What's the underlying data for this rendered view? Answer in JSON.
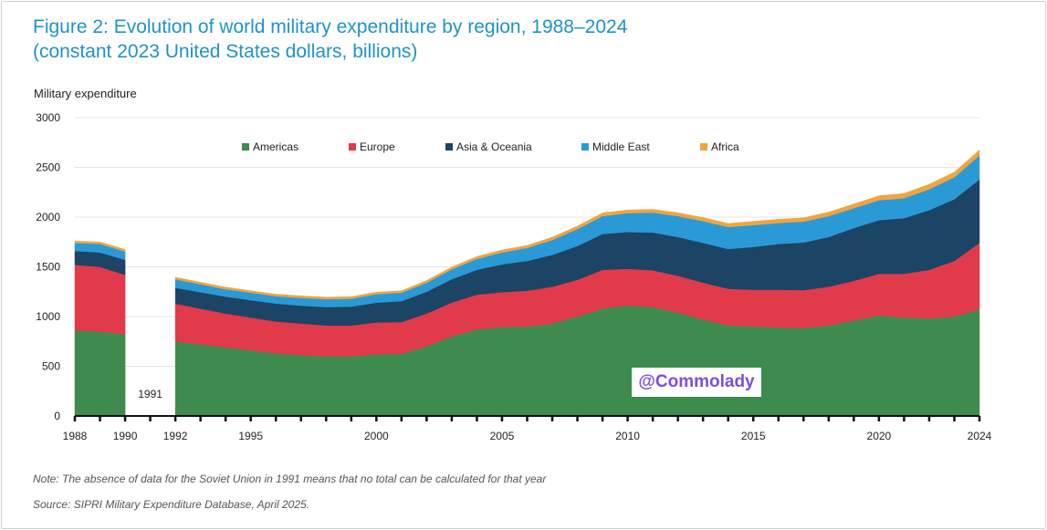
{
  "header": {
    "title_line1": "Figure 2: Evolution of world military expenditure by region, 1988–2024",
    "title_line2": "(constant 2023 United States dollars, billions)"
  },
  "notes": {
    "note": "Note: The absence of data for the Soviet Union in 1991 means that no total can be calculated for that year",
    "source": "Source: SIPRI Military Expenditure Database, April 2025."
  },
  "watermark": "@Commolady",
  "chart_data": {
    "type": "area",
    "stacked": true,
    "title": "Figure 2: Evolution of world military expenditure by region, 1988–2024",
    "subtitle": "(constant 2023 United States dollars, billions)",
    "ylabel": "Military expenditure",
    "xlabel": "",
    "ylim": [
      0,
      3000
    ],
    "yticks": [
      0,
      500,
      1000,
      1500,
      2000,
      2500,
      3000
    ],
    "xticks": [
      1988,
      1990,
      1992,
      1995,
      2000,
      2005,
      2010,
      2015,
      2020,
      2024
    ],
    "xlim": [
      1988,
      2024
    ],
    "gap": {
      "year": 1991,
      "label": "1991"
    },
    "legend_position": "top-center",
    "grid": true,
    "x": [
      1988,
      1989,
      1990,
      1992,
      1993,
      1994,
      1995,
      1996,
      1997,
      1998,
      1999,
      2000,
      2001,
      2002,
      2003,
      2004,
      2005,
      2006,
      2007,
      2008,
      2009,
      2010,
      2011,
      2012,
      2013,
      2014,
      2015,
      2016,
      2017,
      2018,
      2019,
      2020,
      2021,
      2022,
      2023,
      2024
    ],
    "series": [
      {
        "name": "Americas",
        "color": "#3e8a4f",
        "values": [
          860,
          850,
          820,
          750,
          720,
          690,
          660,
          630,
          610,
          600,
          600,
          620,
          625,
          700,
          800,
          870,
          895,
          900,
          930,
          1000,
          1080,
          1110,
          1095,
          1040,
          970,
          910,
          900,
          890,
          885,
          910,
          960,
          1010,
          990,
          980,
          1000,
          1070
        ]
      },
      {
        "name": "Europe",
        "color": "#e13a4b",
        "values": [
          660,
          650,
          600,
          380,
          360,
          340,
          330,
          320,
          320,
          310,
          310,
          320,
          320,
          330,
          340,
          350,
          350,
          360,
          370,
          370,
          390,
          370,
          370,
          370,
          370,
          370,
          370,
          380,
          380,
          390,
          400,
          420,
          440,
          490,
          560,
          670
        ]
      },
      {
        "name": "Asia & Oceania",
        "color": "#1c4464",
        "values": [
          140,
          145,
          150,
          160,
          165,
          170,
          175,
          180,
          180,
          185,
          190,
          200,
          210,
          220,
          235,
          250,
          280,
          300,
          320,
          340,
          360,
          370,
          380,
          390,
          400,
          400,
          430,
          460,
          480,
          500,
          530,
          540,
          560,
          600,
          620,
          640
        ]
      },
      {
        "name": "Middle East",
        "color": "#2a9ad6",
        "values": [
          80,
          85,
          85,
          85,
          80,
          75,
          75,
          75,
          78,
          80,
          80,
          85,
          85,
          90,
          100,
          110,
          120,
          130,
          150,
          170,
          180,
          190,
          200,
          210,
          220,
          220,
          220,
          210,
          210,
          210,
          200,
          200,
          200,
          210,
          220,
          240
        ]
      },
      {
        "name": "Africa",
        "color": "#f0a440",
        "values": [
          20,
          20,
          20,
          20,
          20,
          20,
          20,
          20,
          20,
          20,
          20,
          20,
          20,
          22,
          22,
          24,
          25,
          26,
          28,
          30,
          32,
          32,
          33,
          34,
          35,
          36,
          37,
          38,
          39,
          40,
          42,
          45,
          48,
          50,
          52,
          55
        ]
      }
    ]
  }
}
